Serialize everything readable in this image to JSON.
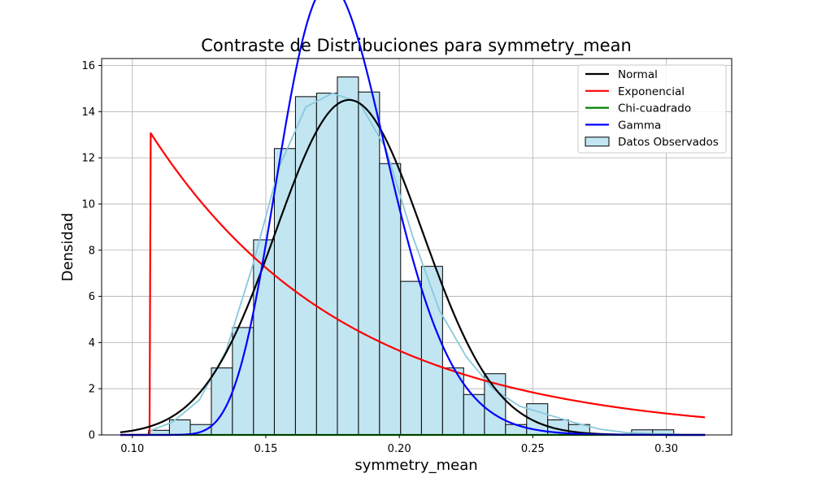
{
  "chart_data": {
    "type": "histogram",
    "title": "Contraste de Distribuciones para symmetry_mean",
    "xlabel": "symmetry_mean",
    "ylabel": "Densidad",
    "xlim": [
      0.0885,
      0.3245
    ],
    "ylim": [
      0,
      16.3
    ],
    "x_ticks": [
      0.1,
      0.15,
      0.2,
      0.25,
      0.3
    ],
    "x_tick_labels": [
      "0.10",
      "0.15",
      "0.20",
      "0.25",
      "0.30"
    ],
    "y_ticks": [
      0,
      2,
      4,
      6,
      8,
      10,
      12,
      14,
      16
    ],
    "y_tick_labels": [
      "0",
      "2",
      "4",
      "6",
      "8",
      "10",
      "12",
      "14",
      "16"
    ],
    "grid": true,
    "legend_position": "top-right",
    "histogram": {
      "name": "Datos Observados",
      "color": "#c2e5f2",
      "edge_color": "#000000",
      "bin_edges": [
        0.106,
        0.1139,
        0.1217,
        0.1296,
        0.1375,
        0.1454,
        0.1532,
        0.1611,
        0.169,
        0.1768,
        0.1847,
        0.1926,
        0.2005,
        0.2083,
        0.2162,
        0.2241,
        0.2319,
        0.2398,
        0.2477,
        0.2556,
        0.2634,
        0.2713,
        0.2792,
        0.287,
        0.2949,
        0.3028
      ],
      "densities": [
        0.2,
        0.65,
        0.45,
        2.9,
        4.65,
        8.45,
        12.4,
        14.65,
        14.8,
        15.5,
        14.85,
        11.75,
        6.65,
        7.3,
        2.9,
        1.75,
        2.65,
        0.45,
        1.35,
        0.65,
        0.45,
        0.0,
        0.0,
        0.22,
        0.22
      ]
    },
    "kde": {
      "color": "#87c9dc",
      "x": [
        0.106,
        0.115,
        0.125,
        0.135,
        0.145,
        0.155,
        0.165,
        0.175,
        0.185,
        0.195,
        0.205,
        0.215,
        0.225,
        0.235,
        0.245,
        0.255,
        0.265,
        0.275,
        0.285,
        0.295,
        0.305
      ],
      "y": [
        0.15,
        0.55,
        1.5,
        3.6,
        7.3,
        11.6,
        14.2,
        14.8,
        14.4,
        12.4,
        8.6,
        5.4,
        3.4,
        2.0,
        1.25,
        0.9,
        0.55,
        0.25,
        0.1,
        0.05,
        0.02
      ]
    },
    "series": [
      {
        "name": "Normal",
        "color": "#000000",
        "dist": "normal",
        "mu": 0.1812,
        "sigma": 0.0275,
        "x_range": [
          0.0955,
          0.3145
        ]
      },
      {
        "name": "Exponencial",
        "color": "#ff0000",
        "dist": "exponential",
        "loc": 0.1067,
        "amp": 13.1,
        "rate": 13.7,
        "x_range": [
          0.0955,
          0.3145
        ]
      },
      {
        "name": "Chi-cuadrado",
        "color": "#008000",
        "dist": "flat",
        "value": 0,
        "x_range": [
          0.0955,
          0.3145
        ]
      },
      {
        "name": "Gamma",
        "color": "#0000ff",
        "dist": "gamma",
        "shape": 16,
        "loc": 0.095,
        "scale": 0.00525,
        "x_range": [
          0.0955,
          0.3145
        ]
      }
    ]
  }
}
